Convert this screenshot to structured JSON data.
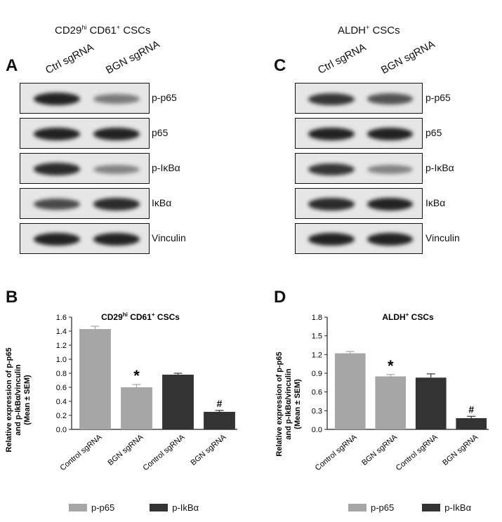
{
  "colors": {
    "p65": "#a6a6a6",
    "ikba": "#333333",
    "axis": "#222222",
    "blot_bg": "#e6e6e6",
    "band": "#222222"
  },
  "panel_A": {
    "letter": "A",
    "title_main": "CD29",
    "title_sup1": "hi",
    "title_mid": " CD61",
    "title_sup2": "+",
    "title_end": " CSCs",
    "columns": [
      "Ctrl sgRNA",
      "BGN sgRNA"
    ],
    "rows": [
      {
        "label": "p-p65",
        "intensity": [
          1.0,
          0.55
        ]
      },
      {
        "label": "p65",
        "intensity": [
          1.0,
          1.0
        ]
      },
      {
        "label": "p-IκBα",
        "intensity": [
          0.95,
          0.5
        ]
      },
      {
        "label": "IκBα",
        "intensity": [
          0.8,
          0.95
        ]
      },
      {
        "label": "Vinculin",
        "intensity": [
          1.0,
          1.0
        ]
      }
    ]
  },
  "panel_C": {
    "letter": "C",
    "title_main": "ALDH",
    "title_sup": "+",
    "title_end": " CSCs",
    "columns": [
      "Ctrl sgRNA",
      "BGN sgRNA"
    ],
    "rows": [
      {
        "label": "p-p65",
        "intensity": [
          0.9,
          0.75
        ]
      },
      {
        "label": "p65",
        "intensity": [
          1.0,
          1.0
        ]
      },
      {
        "label": "p-IκBα",
        "intensity": [
          0.9,
          0.5
        ]
      },
      {
        "label": "IκBα",
        "intensity": [
          0.95,
          1.0
        ]
      },
      {
        "label": "Vinculin",
        "intensity": [
          1.0,
          1.0
        ]
      }
    ]
  },
  "panel_B": {
    "letter": "B"
  },
  "panel_D": {
    "letter": "D"
  },
  "ylabel_line1": "Relative expression of p-p65",
  "ylabel_line2": "and p-IkBα/vinculin",
  "ylabel_line3": "(Mean ± SEM)",
  "legend": [
    {
      "name": "p-p65",
      "color": "#a6a6a6"
    },
    {
      "name": "p-IkBα",
      "color": "#333333"
    }
  ],
  "chart_data": [
    {
      "type": "bar",
      "title": "CD29hi CD61+ CSCs",
      "categories": [
        "Control sgRNA",
        "BGN sgRNA",
        "Control sgRNA",
        "BGN sgRNA"
      ],
      "series": [
        {
          "name": "p-p65",
          "values": [
            1.43,
            0.6,
            null,
            null
          ],
          "errors": [
            0.04,
            0.04,
            null,
            null
          ]
        },
        {
          "name": "p-IkBα",
          "values": [
            null,
            null,
            0.78,
            0.25
          ],
          "errors": [
            null,
            null,
            0.02,
            0.02
          ]
        }
      ],
      "annotations": [
        "",
        "*",
        "",
        "#"
      ],
      "ylim": [
        0,
        1.6
      ],
      "yticks": [
        "0.0",
        "0.2",
        "0.4",
        "0.6",
        "0.8",
        "1.0",
        "1.2",
        "1.4",
        "1.6"
      ]
    },
    {
      "type": "bar",
      "title": "ALDH+ CSCs",
      "categories": [
        "Control sgRNA",
        "BGN sgRNA",
        "Control sgRNA",
        "BGN sgRNA"
      ],
      "series": [
        {
          "name": "p-p65",
          "values": [
            1.22,
            0.85,
            null,
            null
          ],
          "errors": [
            0.03,
            0.03,
            null,
            null
          ]
        },
        {
          "name": "p-IkBα",
          "values": [
            null,
            null,
            0.83,
            0.18
          ],
          "errors": [
            null,
            null,
            0.06,
            0.03
          ]
        }
      ],
      "annotations": [
        "",
        "*",
        "",
        "#"
      ],
      "ylim": [
        0,
        1.8
      ],
      "yticks": [
        "0.0",
        "0.3",
        "0.6",
        "0.9",
        "1.2",
        "1.5",
        "1.8"
      ]
    }
  ]
}
